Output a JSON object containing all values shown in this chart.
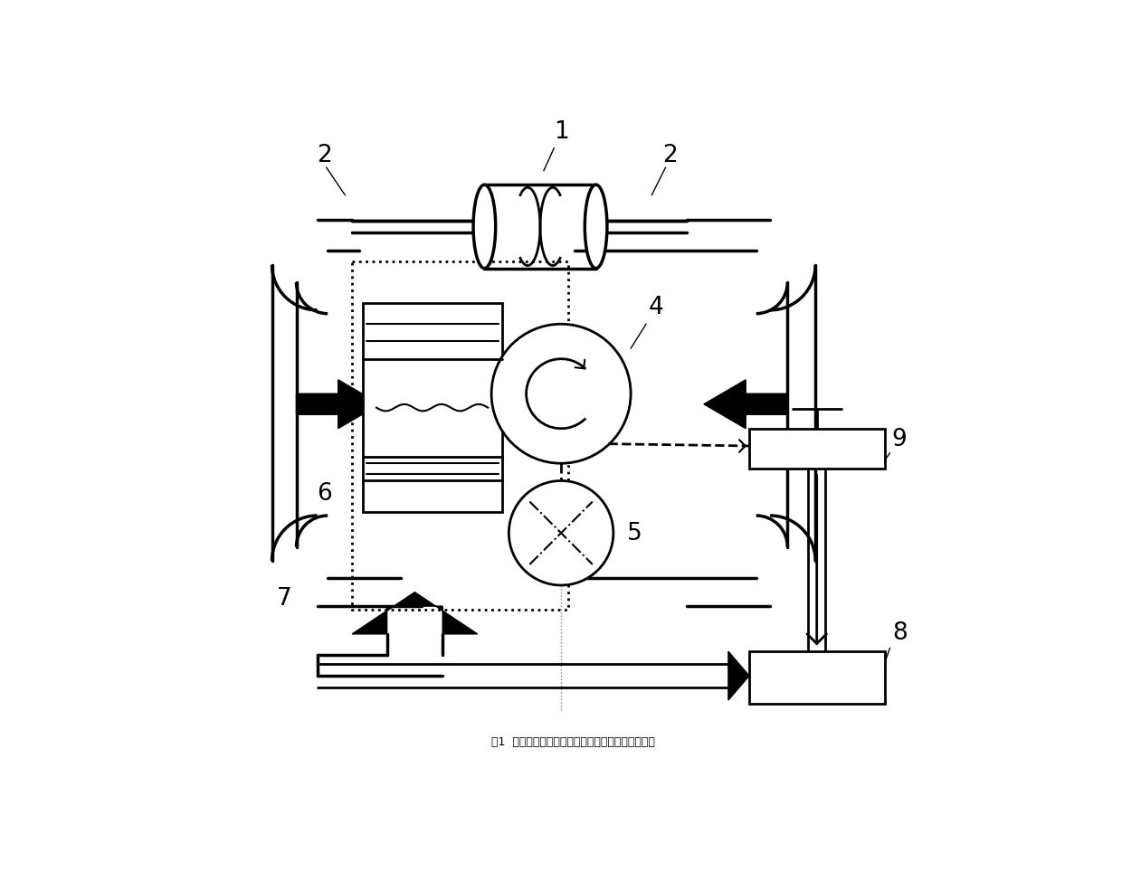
{
  "bg_color": "#ffffff",
  "line_color": "#000000",
  "caption": "图1  基于闭环控制的导体坯料加热方法与设备示意图"
}
